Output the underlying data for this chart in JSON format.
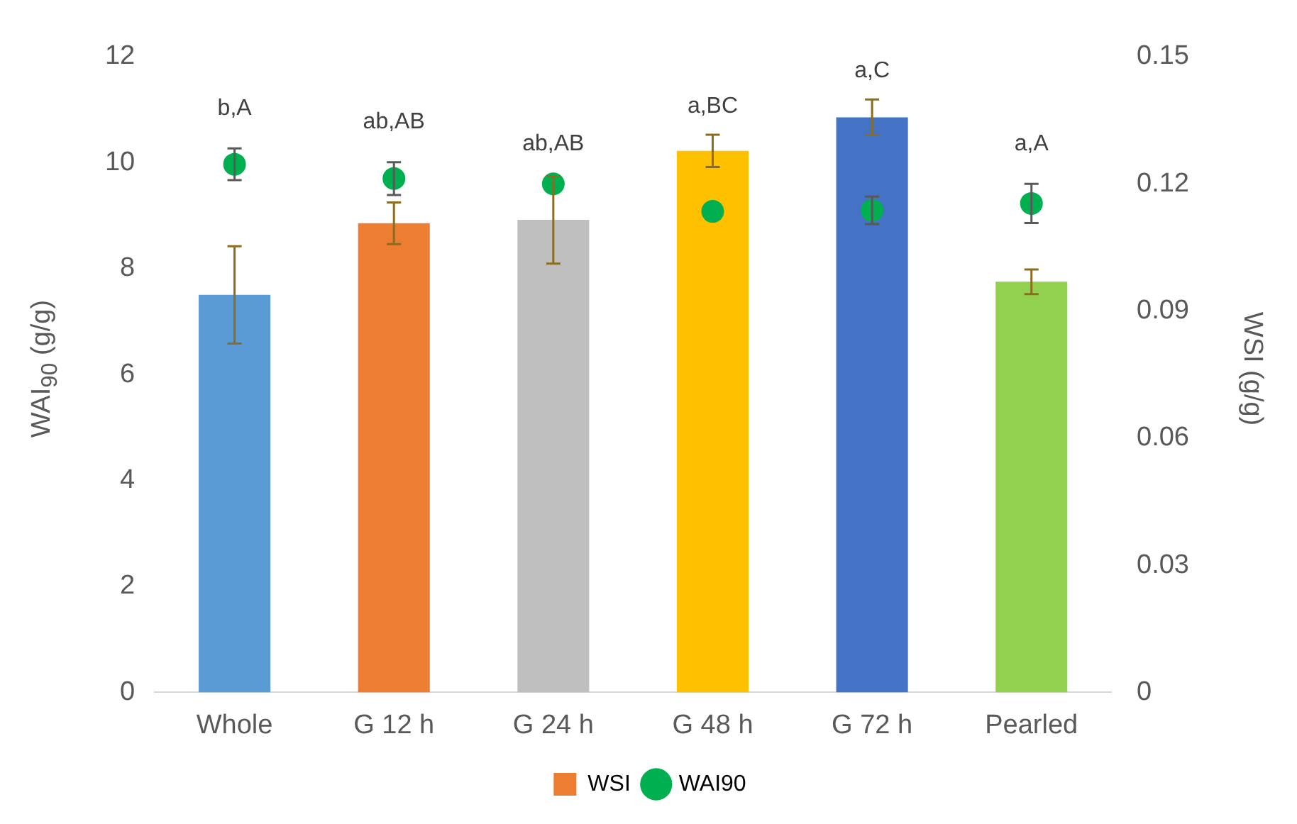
{
  "chart_data": {
    "type": "bar",
    "categories": [
      "Whole",
      "G 12 h",
      "G 24 h",
      "G 48 h",
      "G 72 h",
      "Pearled"
    ],
    "ylabel": "WAI$_{90}$ (g/g)",
    "y2label": "WSI (g/g)",
    "ylim": [
      0,
      12
    ],
    "yticks": [
      0,
      2,
      4,
      6,
      8,
      10,
      12
    ],
    "y2lim": [
      0,
      0.15
    ],
    "y2ticks": [
      0,
      0.03,
      0.06,
      0.09,
      0.12,
      0.15
    ],
    "grid": false,
    "legend": "bottom",
    "marker": "circle",
    "series": [
      {
        "name": "WSI",
        "axis": "y2",
        "color": "#ed7d31",
        "colors": [
          "#5b9bd5",
          "#ed7d31",
          "#bfbfbf",
          "#ffc000",
          "#4472c4",
          "#92d050"
        ],
        "values": [
          0.0938,
          0.1107,
          0.1115,
          0.1278,
          0.1357,
          0.0969
        ],
        "errors": [
          0.0115,
          0.0049,
          0.0103,
          0.0038,
          0.0042,
          0.0029
        ]
      },
      {
        "name": "WAI90",
        "type": "scatter",
        "color": "#00b050",
        "values": [
          9.97,
          9.7,
          9.6,
          9.08,
          9.1,
          9.23
        ],
        "errors": [
          0.3,
          0.31,
          null,
          null,
          0.26,
          0.37
        ]
      }
    ],
    "annotations": [
      "b,A",
      "ab,AB",
      "ab,AB",
      "a,BC",
      "a,C",
      "a,A"
    ]
  }
}
